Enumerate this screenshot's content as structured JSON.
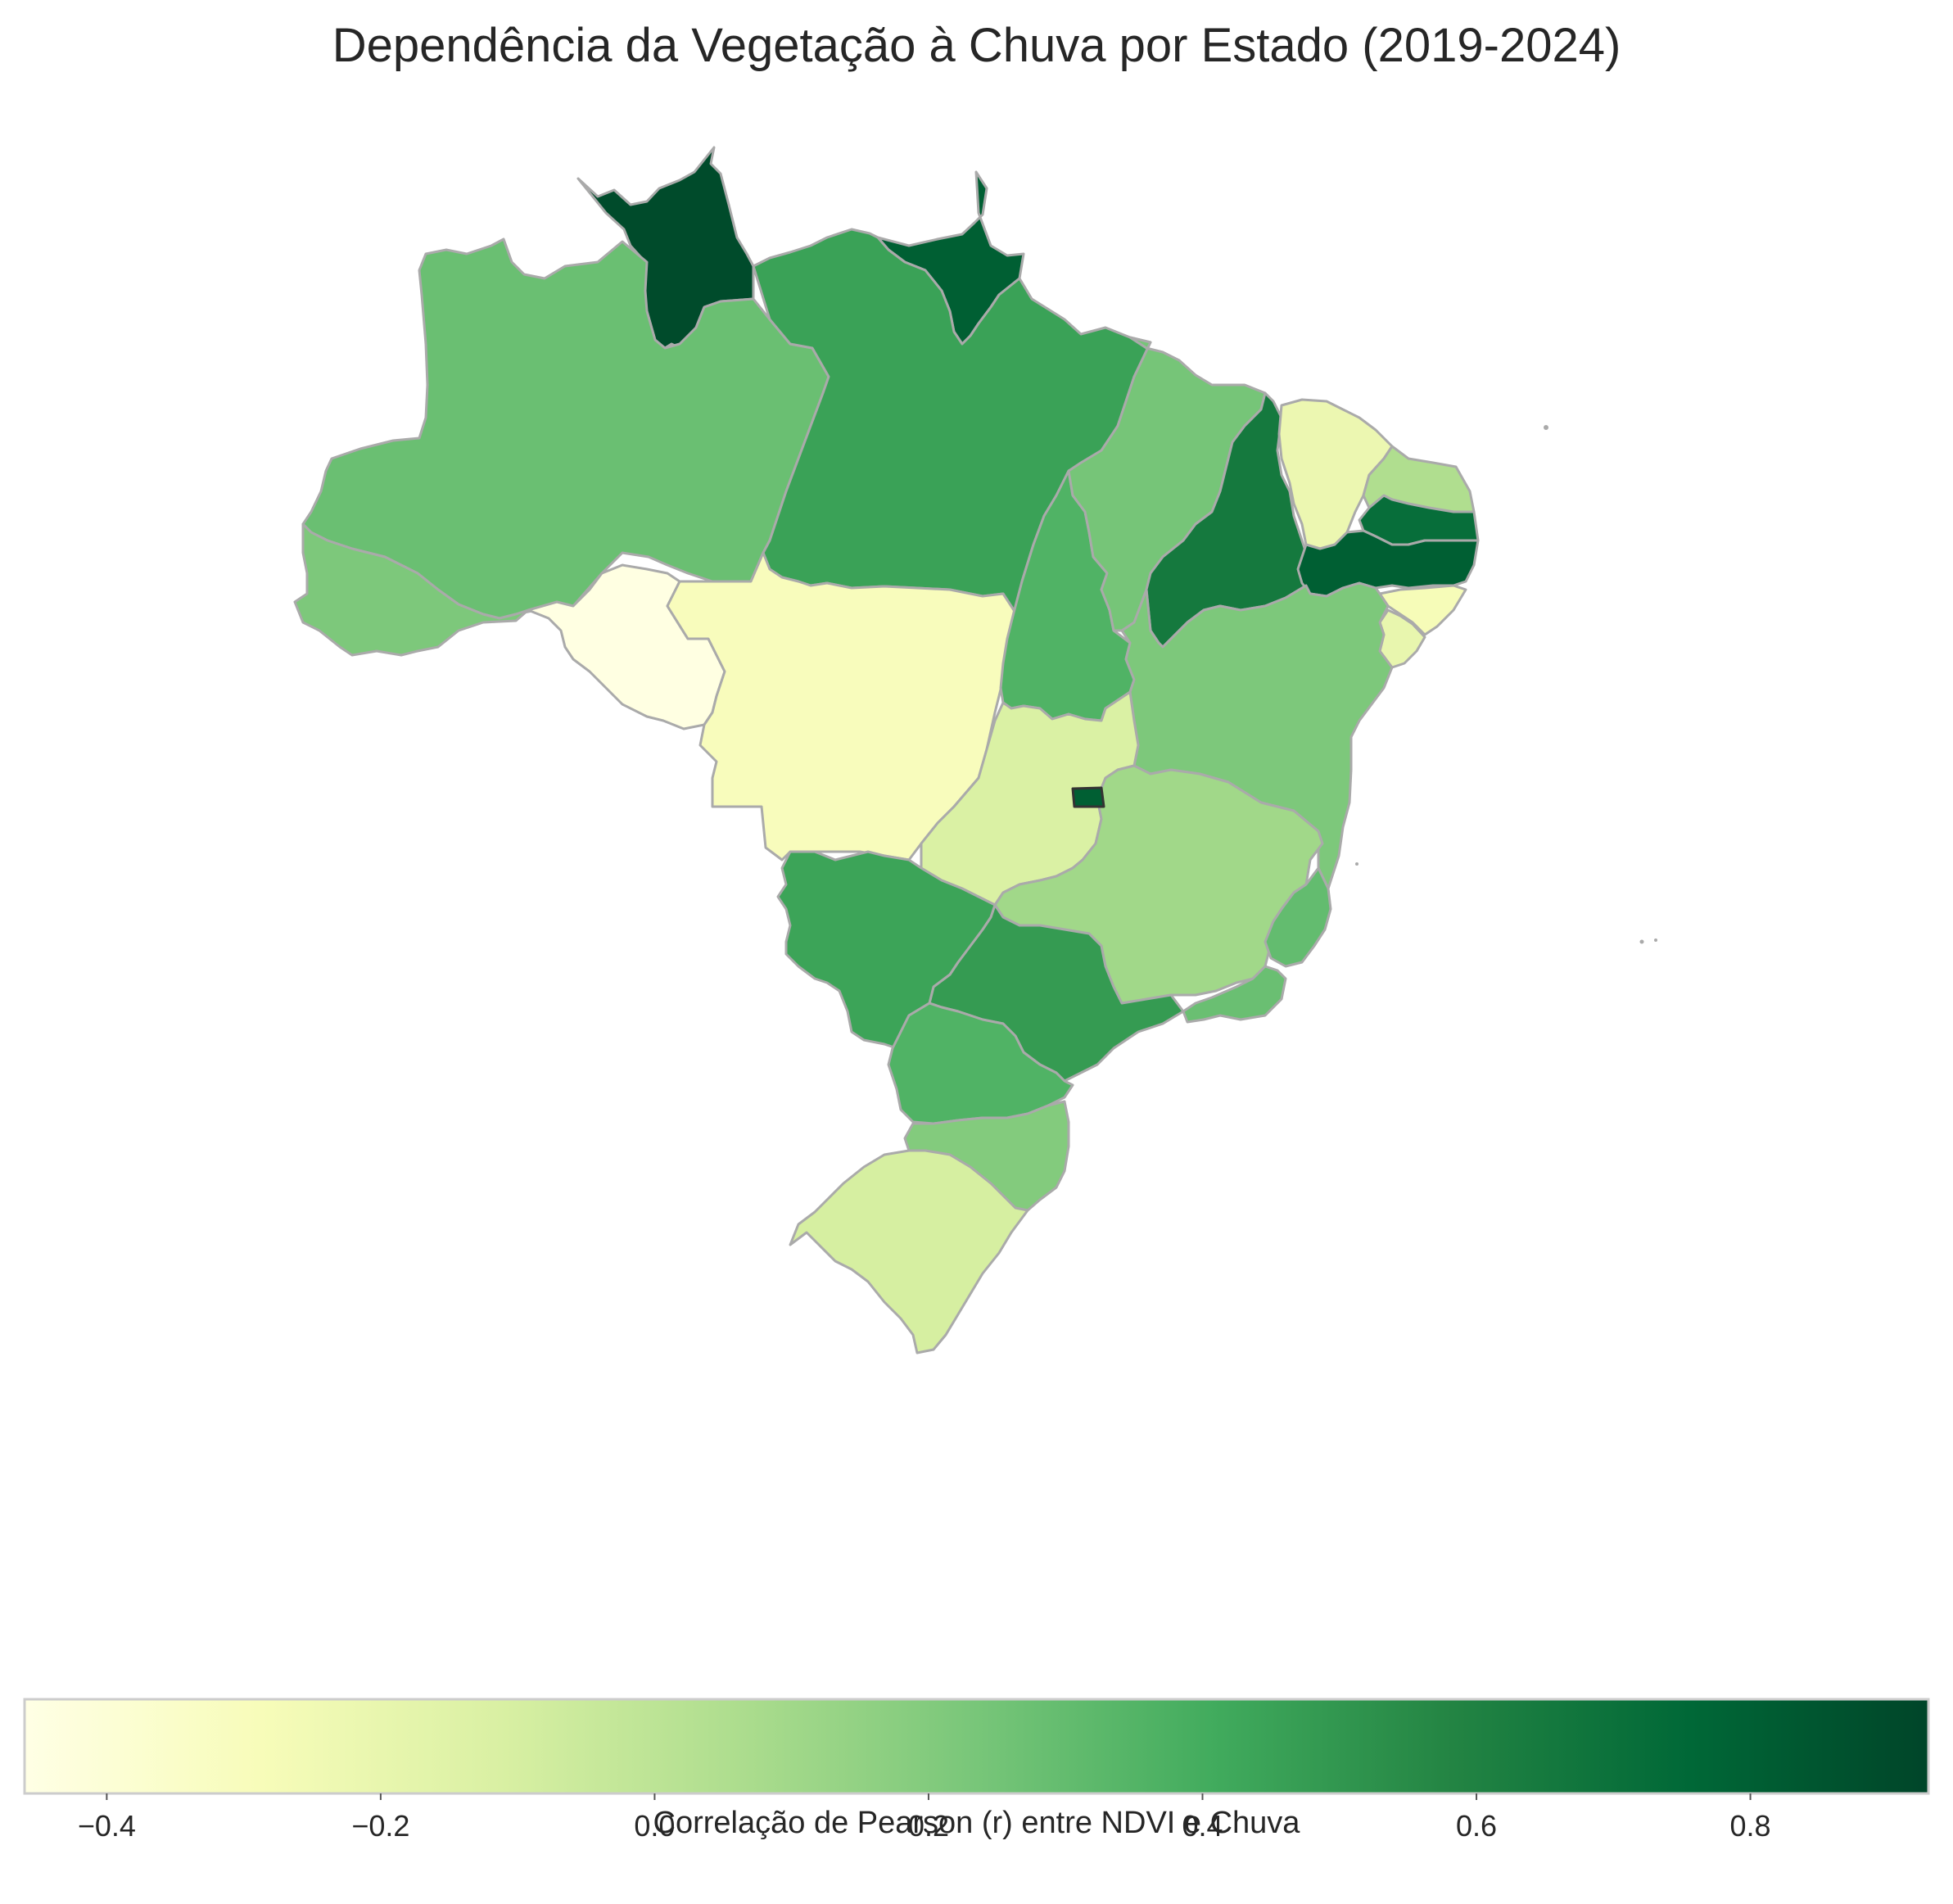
{
  "title": "Dependência da Vegetação à Chuva por Estado (2019-2024)",
  "colorbar": {
    "label": "Correlação de Pearson (r) entre NDVI e Chuva",
    "vmin": -0.46,
    "vmax": 0.93,
    "ticks": [
      -0.4,
      -0.2,
      0.0,
      0.2,
      0.4,
      0.6,
      0.8
    ],
    "tick_labels": [
      "−0.4",
      "−0.2",
      "0.0",
      "0.2",
      "0.4",
      "0.6",
      "0.8"
    ],
    "colormap": "YlGn",
    "colormap_stops": [
      "#ffffe5",
      "#f7fcb9",
      "#d9f0a3",
      "#addd8e",
      "#78c679",
      "#41ab5d",
      "#238443",
      "#006837",
      "#004529"
    ]
  },
  "chart_data": {
    "type": "choropleth",
    "title": "Dependência da Vegetação à Chuva por Estado (2019-2024)",
    "value_label": "Correlação de Pearson (r) entre NDVI e Chuva",
    "range": [
      -0.46,
      0.93
    ],
    "regions": [
      {
        "id": "RR",
        "value": 0.9
      },
      {
        "id": "AP",
        "value": 0.8
      },
      {
        "id": "AM",
        "value": 0.28
      },
      {
        "id": "PA",
        "value": 0.45
      },
      {
        "id": "AC",
        "value": 0.22
      },
      {
        "id": "RO",
        "value": -0.45
      },
      {
        "id": "MT",
        "value": -0.3
      },
      {
        "id": "TO",
        "value": 0.36
      },
      {
        "id": "MA",
        "value": 0.24
      },
      {
        "id": "PI",
        "value": 0.65
      },
      {
        "id": "CE",
        "value": -0.22
      },
      {
        "id": "RN",
        "value": 0.05
      },
      {
        "id": "PB",
        "value": 0.72
      },
      {
        "id": "PE",
        "value": 0.8
      },
      {
        "id": "AL",
        "value": -0.28
      },
      {
        "id": "SE",
        "value": -0.2
      },
      {
        "id": "BA",
        "value": 0.22
      },
      {
        "id": "GO",
        "value": -0.12
      },
      {
        "id": "DF",
        "value": 0.8
      },
      {
        "id": "MG",
        "value": 0.1
      },
      {
        "id": "ES",
        "value": 0.3
      },
      {
        "id": "RJ",
        "value": 0.28
      },
      {
        "id": "SP",
        "value": 0.48
      },
      {
        "id": "MS",
        "value": 0.44
      },
      {
        "id": "PR",
        "value": 0.36
      },
      {
        "id": "SC",
        "value": 0.2
      },
      {
        "id": "RS",
        "value": -0.1
      }
    ]
  }
}
